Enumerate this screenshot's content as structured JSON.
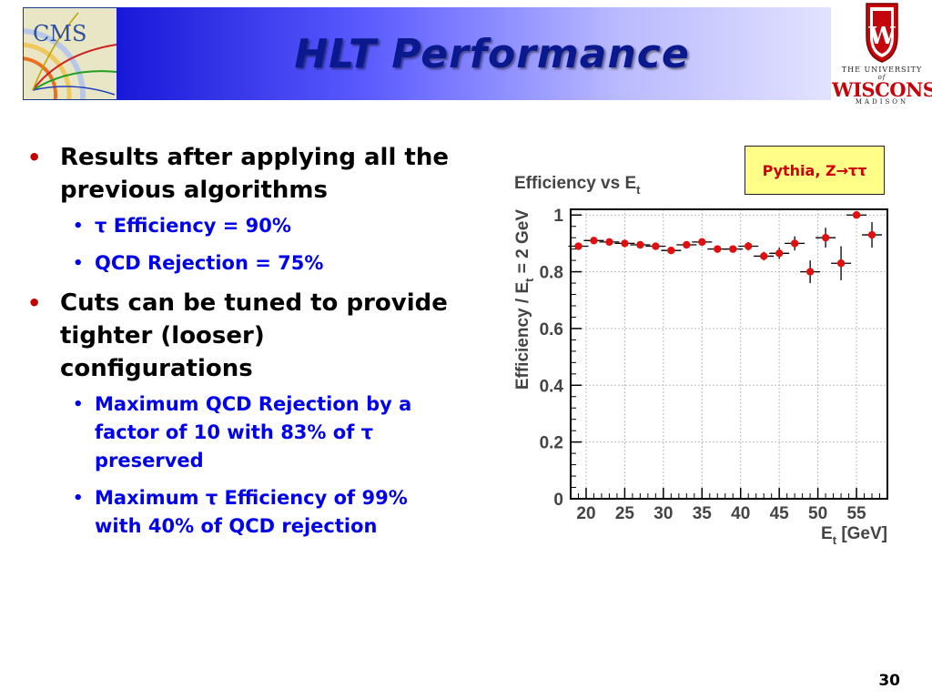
{
  "slide": {
    "title": "HLT Performance",
    "page_number": "30"
  },
  "logos": {
    "cms_text": "CMS",
    "uw_line1": "THE UNIVERSITY",
    "uw_of": "of",
    "uw_line2": "WISCONSIN",
    "uw_line3": "MADISON"
  },
  "bullets": [
    {
      "text": "Results after applying all the previous algorithms",
      "sub": [
        "τ Efficiency = 90%",
        "QCD Rejection =  75%"
      ]
    },
    {
      "text": "Cuts can be tuned to provide tighter (looser) configurations",
      "sub": [
        "Maximum QCD Rejection by a factor of 10 with 83% of τ preserved",
        "Maximum τ Efficiency of 99% with 40% of QCD rejection"
      ]
    }
  ],
  "note": "Pythia, Z→ττ",
  "colors": {
    "marker": "#e01010",
    "title_bar_start": "#1818d8",
    "title_bar_end": "#e2e2ff",
    "title_text": "#0a1a8e",
    "sub_bullet_text": "#0000ee",
    "bullet_dot": "#c00000",
    "note_bg": "#ffff88"
  },
  "chart_data": {
    "type": "scatter",
    "title": "Efficiency vs E",
    "title_sub": "t",
    "ylabel": "Efficiency  / E",
    "ylabel_sub": "t",
    "ylabel_suffix": " = 2 GeV",
    "xlabel": "E",
    "xlabel_sub": "t",
    "xlabel_suffix": " [GeV]",
    "xlim": [
      18,
      59
    ],
    "ylim": [
      0,
      1.0
    ],
    "x_ticks": [
      20,
      25,
      30,
      35,
      40,
      45,
      50,
      55
    ],
    "y_ticks": [
      0,
      0.2,
      0.4,
      0.6,
      0.8,
      1
    ],
    "grid": true,
    "points": [
      {
        "x": 19,
        "y": 0.89,
        "err": 0.01
      },
      {
        "x": 21,
        "y": 0.91,
        "err": 0.01
      },
      {
        "x": 23,
        "y": 0.905,
        "err": 0.01
      },
      {
        "x": 25,
        "y": 0.9,
        "err": 0.01
      },
      {
        "x": 27,
        "y": 0.895,
        "err": 0.01
      },
      {
        "x": 29,
        "y": 0.89,
        "err": 0.01
      },
      {
        "x": 31,
        "y": 0.875,
        "err": 0.01
      },
      {
        "x": 33,
        "y": 0.895,
        "err": 0.01
      },
      {
        "x": 35,
        "y": 0.905,
        "err": 0.012
      },
      {
        "x": 37,
        "y": 0.88,
        "err": 0.012
      },
      {
        "x": 39,
        "y": 0.88,
        "err": 0.012
      },
      {
        "x": 41,
        "y": 0.89,
        "err": 0.015
      },
      {
        "x": 43,
        "y": 0.855,
        "err": 0.015
      },
      {
        "x": 45,
        "y": 0.865,
        "err": 0.02
      },
      {
        "x": 47,
        "y": 0.9,
        "err": 0.025
      },
      {
        "x": 49,
        "y": 0.8,
        "err": 0.04
      },
      {
        "x": 51,
        "y": 0.92,
        "err": 0.035
      },
      {
        "x": 53,
        "y": 0.83,
        "err": 0.06
      },
      {
        "x": 55,
        "y": 1.0,
        "err": 0.0
      },
      {
        "x": 57,
        "y": 0.93,
        "err": 0.045
      }
    ]
  }
}
